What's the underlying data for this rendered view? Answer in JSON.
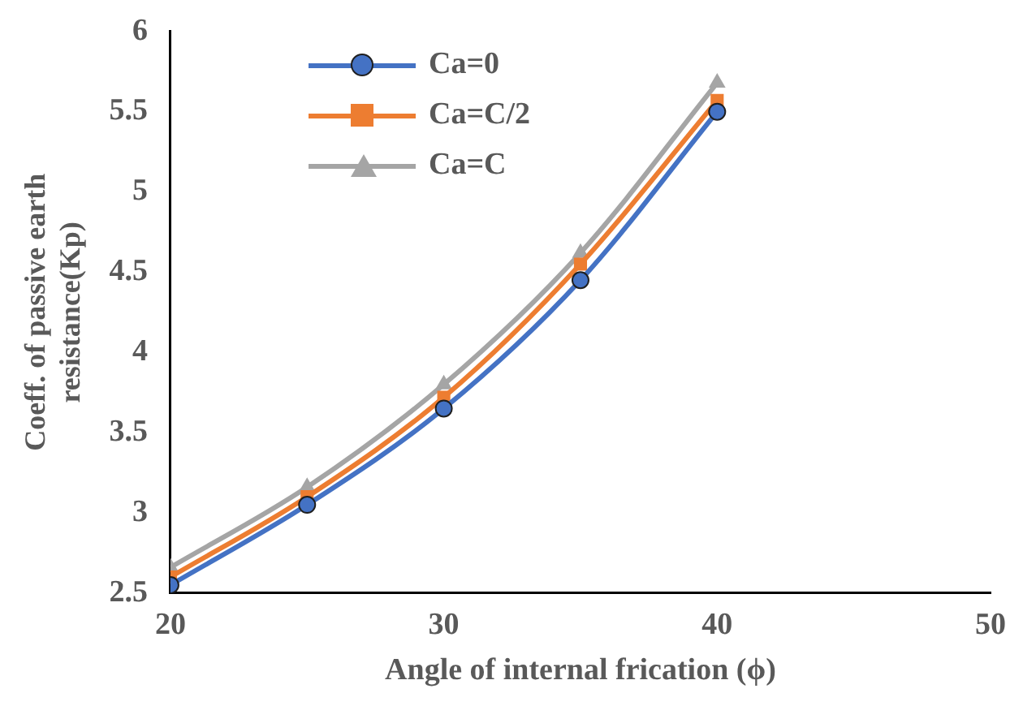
{
  "chart_data": {
    "type": "line",
    "xlabel": "Angle of internal frication (ϕ)",
    "ylabel": "Coeff. of passive earth\nresistance(Kp)",
    "x": [
      20,
      25,
      30,
      35,
      40
    ],
    "series": [
      {
        "name": "Ca=0",
        "color": "#4472c4",
        "marker": "circle",
        "values": [
          2.55,
          3.05,
          3.65,
          4.45,
          5.5
        ]
      },
      {
        "name": "Ca=C/2",
        "color": "#ed7d31",
        "marker": "square",
        "values": [
          2.6,
          3.1,
          3.72,
          4.55,
          5.57
        ]
      },
      {
        "name": "Ca=C",
        "color": "#a5a5a5",
        "marker": "triangle",
        "values": [
          2.66,
          3.16,
          3.8,
          4.62,
          5.68
        ]
      }
    ],
    "xlim": [
      20,
      50
    ],
    "xticks": [
      20,
      30,
      40,
      50
    ],
    "ylim": [
      2.5,
      6
    ],
    "yticks": [
      2.5,
      3,
      3.5,
      4,
      4.5,
      5,
      5.5,
      6
    ],
    "grid": false,
    "legend": "top left",
    "line_style": "solid"
  }
}
